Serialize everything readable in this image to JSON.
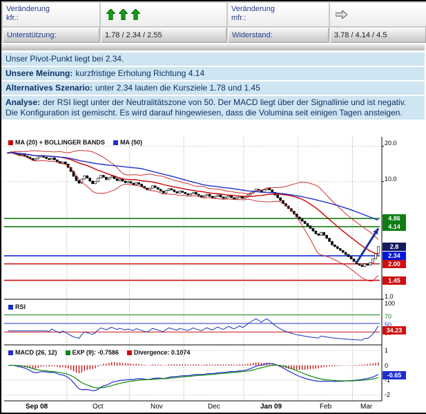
{
  "header": {
    "change_short_label_1": "Veränderung",
    "change_short_label_2": "kfr.:",
    "change_short_arrows": {
      "direction": "up",
      "count": 3,
      "color": "#12a012"
    },
    "change_mid_label_1": "Veränderung",
    "change_mid_label_2": "mfr.:",
    "change_mid_arrow": {
      "direction": "right",
      "color": "#e2e2e2"
    },
    "support_label": "Unterstützung:",
    "support_values": "1.78 / 2.34 / 2.55",
    "resistance_label": "Widerstand:",
    "resistance_values": "3.78 / 4.14 / 4.5"
  },
  "analysis": {
    "pivot_sentence": "Unser Pivot-Punkt liegt bei 2.34.",
    "opinion_label": "Unsere Meinung:",
    "opinion_text": "kurzfristige Erholung Richtung 4.14",
    "alternative_label": "Alternatives Szenario:",
    "alternative_text": "unter 2.34 lauten die Kursziele 1.78 und 1.45",
    "analysis_label": "Analyse:",
    "analysis_text": "der RSI liegt unter der Neutralitätszone von 50. Der MACD liegt über der Signallinie und ist negativ. Die Konfiguration ist gemischt. Es wird darauf hingewiesen, dass die Volumina seit einigen Tagen ansteigen."
  },
  "chart_data": {
    "type": "candlestick",
    "title": "",
    "legend_main": [
      {
        "label": "MA (20) + BOLLINGER BANDS",
        "color": "#cc0000"
      },
      {
        "label": "MA (50)",
        "color": "#2030cc"
      }
    ],
    "months": [
      {
        "label": "Sep 08",
        "start_index": 0,
        "bold": true
      },
      {
        "label": "Oct",
        "start_index": 22,
        "bold": false
      },
      {
        "label": "Nov",
        "start_index": 45,
        "bold": false
      },
      {
        "label": "Dec",
        "start_index": 65,
        "bold": false
      },
      {
        "label": "Jan 09",
        "start_index": 87,
        "bold": true
      },
      {
        "label": "Feb",
        "start_index": 107,
        "bold": false
      },
      {
        "label": "Mar",
        "start_index": 127,
        "bold": false
      }
    ],
    "close": [
      17.6,
      17.8,
      17.4,
      17.1,
      16.8,
      17.0,
      16.5,
      16.1,
      15.7,
      15.2,
      15.6,
      16.2,
      16.6,
      16.1,
      15.7,
      15.4,
      15.9,
      15.3,
      14.8,
      14.3,
      14.7,
      14.1,
      13.2,
      12.2,
      11.1,
      10.2,
      9.7,
      10.5,
      11.2,
      10.7,
      10.1,
      9.6,
      10.0,
      10.7,
      11.3,
      10.9,
      10.4,
      10.8,
      11.1,
      10.6,
      10.2,
      10.5,
      10.1,
      9.8,
      10.0,
      9.7,
      9.4,
      9.8,
      9.5,
      9.1,
      8.8,
      8.5,
      8.8,
      9.2,
      8.9,
      8.6,
      8.3,
      8.0,
      8.4,
      8.7,
      8.5,
      8.2,
      8.0,
      8.3,
      8.1,
      7.9,
      7.7,
      7.9,
      8.1,
      7.8,
      7.6,
      7.4,
      7.6,
      7.8,
      7.5,
      7.3,
      7.5,
      7.7,
      7.4,
      7.2,
      7.4,
      7.6,
      7.3,
      7.1,
      7.3,
      7.5,
      7.2,
      7.4,
      7.7,
      8.0,
      8.3,
      8.6,
      8.4,
      8.1,
      8.5,
      8.8,
      8.5,
      8.1,
      7.7,
      7.3,
      6.9,
      6.5,
      6.2,
      5.9,
      5.6,
      5.3,
      5.0,
      4.8,
      4.6,
      4.4,
      4.2,
      4.0,
      3.8,
      3.6,
      3.5,
      3.7,
      3.5,
      3.3,
      3.1,
      2.9,
      2.8,
      2.7,
      2.6,
      2.5,
      2.4,
      2.3,
      2.2,
      2.1,
      2.0,
      1.95,
      1.9,
      2.0,
      1.95,
      2.05,
      2.2,
      2.45,
      2.8
    ],
    "price_axis": {
      "scale": "log",
      "min": 1.0,
      "max": 24,
      "ticks": [
        {
          "v": 20,
          "label": "20.0"
        },
        {
          "v": 10,
          "label": "10.0"
        },
        {
          "v": 1,
          "label": "1.0"
        }
      ]
    },
    "levels": [
      {
        "value": 4.86,
        "label": "4.86",
        "color": "#0f7c12",
        "line": true
      },
      {
        "value": 4.14,
        "label": "4.14",
        "color": "#0f7c12",
        "line": true
      },
      {
        "value": 2.8,
        "label": "2.8",
        "color": "#141a5e",
        "line": false
      },
      {
        "value": 2.34,
        "label": "2.34",
        "color": "#0018d8",
        "line": true
      },
      {
        "value": 2.0,
        "label": "2.00",
        "color": "#cc1111",
        "line": true
      },
      {
        "value": 1.45,
        "label": "1.45",
        "color": "#cc1111",
        "line": true
      }
    ],
    "rsi": {
      "legend": "RSI",
      "color": "#1133bb",
      "value": 34.23,
      "value_label": "34.23",
      "value_badge_color": "#cc1111",
      "range": [
        0,
        100
      ],
      "guides": [
        {
          "v": 70,
          "color": "#0f7c12"
        },
        {
          "v": 50,
          "color": "#2030cc"
        },
        {
          "v": 30,
          "color": "#cc1111"
        }
      ],
      "ticks": [
        {
          "v": 100,
          "label": "100",
          "color": "#000000"
        },
        {
          "v": 70,
          "label": "70",
          "color": "#0f7c12"
        },
        {
          "v": 50,
          "label": "50",
          "color": "#2030cc"
        },
        {
          "v": 30,
          "label": "30",
          "color": "#cc1111"
        }
      ]
    },
    "macd": {
      "legend": [
        {
          "label": "MACD (26, 12)",
          "color": "#1f2dd0"
        },
        {
          "label": "EXP (9): -0.7586",
          "color": "#0c8a0c"
        },
        {
          "label": "Divergence: 0.1074",
          "color": "#cc1111"
        }
      ],
      "params": {
        "fast": 12,
        "slow": 26,
        "signal": 9
      },
      "value": -0.65,
      "value_label": "-0.65",
      "value_badge_color": "#1f2dd0",
      "range": [
        -2.4,
        1.2
      ],
      "ticks": [
        1,
        0,
        -1,
        -2
      ]
    },
    "trend_arrow": {
      "from": {
        "index": 128,
        "value": 2.05
      },
      "to": {
        "index": 136,
        "value": 4.0
      },
      "color": "#1b2fa0"
    }
  }
}
